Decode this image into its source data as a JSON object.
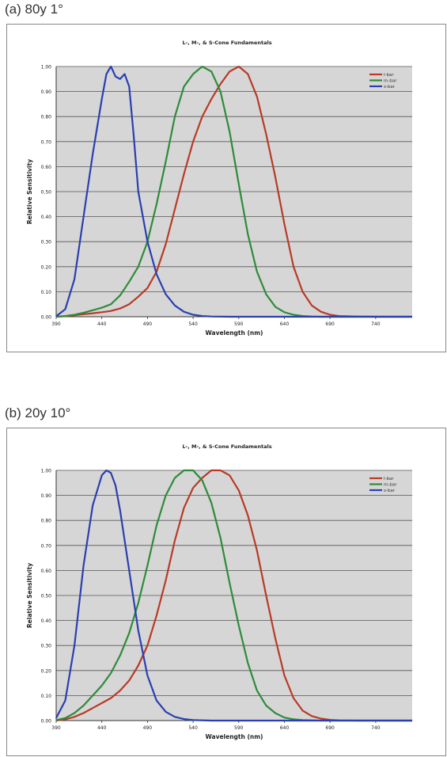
{
  "panels": [
    {
      "label": "(a) 80y 1°"
    },
    {
      "label": "(b) 20y 10°"
    }
  ],
  "colors": {
    "l": "#b83a26",
    "m": "#2e8b3a",
    "s": "#2a3fb0",
    "plot_bg": "#d6d6d6",
    "grid": "#555555"
  },
  "chart_data": [
    {
      "type": "line",
      "title": "L-, M-, & S-Cone Fundamentals",
      "xlabel": "Wavelength (nm)",
      "ylabel": "Relative Sensitivity",
      "xlim": [
        390,
        780
      ],
      "ylim": [
        0,
        1
      ],
      "x_ticks": [
        "390",
        "440",
        "490",
        "540",
        "590",
        "640",
        "690",
        "740"
      ],
      "y_ticks": [
        "0.00",
        "0.10",
        "0.20",
        "0.30",
        "0.40",
        "0.50",
        "0.60",
        "0.70",
        "0.80",
        "0.90",
        "1.00"
      ],
      "grid": true,
      "legend": "top-right",
      "series": [
        {
          "name": "l-bar",
          "x": [
            390,
            400,
            410,
            420,
            430,
            440,
            450,
            460,
            470,
            480,
            490,
            500,
            510,
            520,
            530,
            540,
            550,
            560,
            570,
            580,
            590,
            600,
            610,
            620,
            630,
            640,
            650,
            660,
            670,
            680,
            690,
            700,
            720,
            740,
            780
          ],
          "y": [
            0,
            0.002,
            0.006,
            0.01,
            0.014,
            0.018,
            0.023,
            0.033,
            0.05,
            0.08,
            0.115,
            0.18,
            0.29,
            0.43,
            0.57,
            0.7,
            0.8,
            0.87,
            0.93,
            0.98,
            1.0,
            0.97,
            0.88,
            0.73,
            0.56,
            0.37,
            0.2,
            0.1,
            0.045,
            0.02,
            0.008,
            0.003,
            0.001,
            0,
            0
          ]
        },
        {
          "name": "m-bar",
          "x": [
            390,
            400,
            410,
            420,
            430,
            440,
            450,
            460,
            470,
            480,
            490,
            500,
            510,
            520,
            530,
            540,
            550,
            560,
            570,
            580,
            590,
            600,
            610,
            620,
            630,
            640,
            650,
            660,
            670,
            680,
            700,
            780
          ],
          "y": [
            0,
            0.003,
            0.008,
            0.016,
            0.026,
            0.036,
            0.05,
            0.085,
            0.14,
            0.2,
            0.3,
            0.45,
            0.62,
            0.8,
            0.92,
            0.97,
            1.0,
            0.98,
            0.9,
            0.74,
            0.53,
            0.33,
            0.18,
            0.09,
            0.04,
            0.018,
            0.008,
            0.003,
            0.001,
            0,
            0,
            0
          ]
        },
        {
          "name": "s-bar",
          "x": [
            390,
            400,
            410,
            420,
            430,
            440,
            445,
            450,
            455,
            460,
            465,
            470,
            475,
            480,
            490,
            500,
            510,
            520,
            530,
            540,
            550,
            560,
            580,
            780
          ],
          "y": [
            0.002,
            0.03,
            0.15,
            0.4,
            0.65,
            0.87,
            0.97,
            1.0,
            0.96,
            0.95,
            0.97,
            0.92,
            0.72,
            0.5,
            0.3,
            0.17,
            0.09,
            0.045,
            0.02,
            0.008,
            0.003,
            0.001,
            0,
            0
          ]
        }
      ]
    },
    {
      "type": "line",
      "title": "L-, M-, & S-Cone Fundamentals",
      "xlabel": "Wavelength (nm)",
      "ylabel": "Relative Sensitivity",
      "xlim": [
        390,
        780
      ],
      "ylim": [
        0,
        1
      ],
      "x_ticks": [
        "390",
        "440",
        "490",
        "540",
        "590",
        "640",
        "690",
        "740"
      ],
      "y_ticks": [
        "0.00",
        "0.10",
        "0.20",
        "0.30",
        "0.40",
        "0.50",
        "0.60",
        "0.70",
        "0.80",
        "0.90",
        "1.00"
      ],
      "grid": true,
      "legend": "top-right",
      "series": [
        {
          "name": "l-bar",
          "x": [
            390,
            400,
            410,
            420,
            430,
            440,
            450,
            460,
            470,
            480,
            490,
            500,
            510,
            520,
            530,
            540,
            550,
            560,
            570,
            580,
            590,
            600,
            610,
            620,
            630,
            640,
            650,
            660,
            670,
            680,
            690,
            700,
            720,
            780
          ],
          "y": [
            0,
            0.005,
            0.015,
            0.03,
            0.05,
            0.07,
            0.09,
            0.12,
            0.16,
            0.22,
            0.3,
            0.42,
            0.56,
            0.72,
            0.85,
            0.93,
            0.97,
            1.0,
            1.0,
            0.98,
            0.92,
            0.82,
            0.68,
            0.5,
            0.33,
            0.18,
            0.09,
            0.04,
            0.018,
            0.008,
            0.003,
            0.001,
            0,
            0
          ]
        },
        {
          "name": "m-bar",
          "x": [
            390,
            400,
            410,
            420,
            430,
            440,
            450,
            460,
            470,
            480,
            490,
            500,
            510,
            520,
            530,
            540,
            550,
            560,
            570,
            580,
            590,
            600,
            610,
            620,
            630,
            640,
            650,
            660,
            680,
            780
          ],
          "y": [
            0.002,
            0.01,
            0.03,
            0.06,
            0.1,
            0.14,
            0.19,
            0.26,
            0.35,
            0.47,
            0.62,
            0.78,
            0.9,
            0.97,
            1.0,
            1.0,
            0.96,
            0.87,
            0.73,
            0.55,
            0.38,
            0.23,
            0.12,
            0.06,
            0.03,
            0.012,
            0.005,
            0.002,
            0,
            0
          ]
        },
        {
          "name": "s-bar",
          "x": [
            390,
            400,
            410,
            420,
            430,
            440,
            445,
            450,
            455,
            460,
            470,
            480,
            490,
            500,
            510,
            520,
            530,
            540,
            560,
            780
          ],
          "y": [
            0.01,
            0.08,
            0.3,
            0.62,
            0.86,
            0.98,
            1.0,
            0.99,
            0.94,
            0.84,
            0.6,
            0.36,
            0.18,
            0.08,
            0.035,
            0.015,
            0.006,
            0.002,
            0,
            0
          ]
        }
      ]
    }
  ]
}
